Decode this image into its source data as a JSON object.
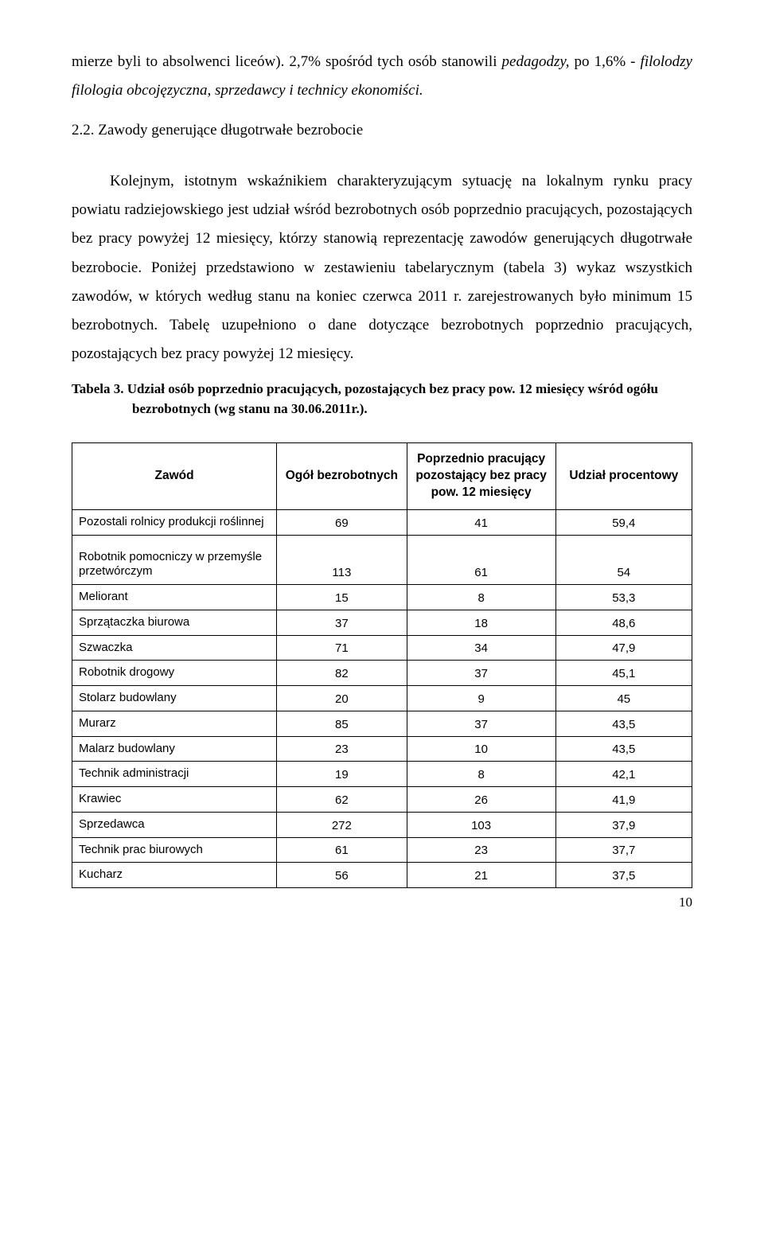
{
  "intro": {
    "run1": "mierze byli to absolwenci liceów). 2,7% spośród tych osób stanowili ",
    "run2_italic": "pedagodzy,",
    "run3": " po 1,6% - ",
    "run4_italic": "filolodzy filologia obcojęzyczna, sprzedawcy i technicy ekonomiści."
  },
  "section_number": "2.2. Zawody generujące długotrwałe bezrobocie",
  "body": "Kolejnym, istotnym wskaźnikiem charakteryzującym sytuację na lokalnym rynku pracy powiatu radziejowskiego jest udział wśród bezrobotnych osób poprzednio pracujących, pozostających bez pracy powyżej 12 miesięcy, którzy stanowią reprezentację zawodów generujących długotrwałe bezrobocie. Poniżej przedstawiono w zestawieniu tabelarycznym (tabela 3) wykaz wszystkich zawodów, w których według stanu na koniec czerwca 2011 r. zarejestrowanych było minimum 15 bezrobotnych. Tabelę uzupełniono o dane dotyczące bezrobotnych poprzednio pracujących, pozostających bez pracy powyżej 12 miesięcy.",
  "table_caption": "Tabela 3. Udział osób poprzednio pracujących, pozostających bez pracy pow. 12 miesięcy wśród ogółu bezrobotnych (wg stanu na 30.06.2011r.).",
  "headers": {
    "zawod": "Zawód",
    "ogol": "Ogół bezrobotnych",
    "pop": "Poprzednio pracujący pozostający bez pracy pow. 12 miesięcy",
    "udzial": "Udział procentowy"
  },
  "rows": [
    {
      "label": "Pozostali rolnicy produkcji roślinnej",
      "a": "69",
      "b": "41",
      "c": "59,4",
      "tall": false
    },
    {
      "label": "Robotnik pomocniczy w przemyśle przetwórczym",
      "a": "113",
      "b": "61",
      "c": "54",
      "tall": true
    },
    {
      "label": "Meliorant",
      "a": "15",
      "b": "8",
      "c": "53,3",
      "tall": false
    },
    {
      "label": "Sprzątaczka biurowa",
      "a": "37",
      "b": "18",
      "c": "48,6",
      "tall": false
    },
    {
      "label": "Szwaczka",
      "a": "71",
      "b": "34",
      "c": "47,9",
      "tall": false
    },
    {
      "label": "Robotnik drogowy",
      "a": "82",
      "b": "37",
      "c": "45,1",
      "tall": false
    },
    {
      "label": "Stolarz budowlany",
      "a": "20",
      "b": "9",
      "c": "45",
      "tall": false
    },
    {
      "label": "Murarz",
      "a": "85",
      "b": "37",
      "c": "43,5",
      "tall": false
    },
    {
      "label": "Malarz budowlany",
      "a": "23",
      "b": "10",
      "c": "43,5",
      "tall": false
    },
    {
      "label": "Technik administracji",
      "a": "19",
      "b": "8",
      "c": "42,1",
      "tall": false
    },
    {
      "label": "Krawiec",
      "a": "62",
      "b": "26",
      "c": "41,9",
      "tall": false
    },
    {
      "label": "Sprzedawca",
      "a": "272",
      "b": "103",
      "c": "37,9",
      "tall": false
    },
    {
      "label": "Technik prac biurowych",
      "a": "61",
      "b": "23",
      "c": "37,7",
      "tall": false
    },
    {
      "label": "Kucharz",
      "a": "56",
      "b": "21",
      "c": "37,5",
      "tall": false
    }
  ],
  "page_number": "10"
}
